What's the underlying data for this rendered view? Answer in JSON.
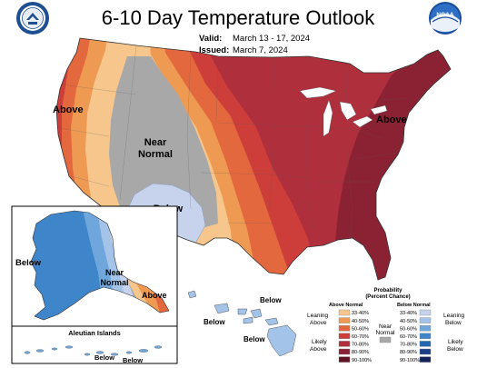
{
  "title": "6-10 Day Temperature Outlook",
  "valid_label": "Valid:",
  "valid_value": "March 13 - 17, 2024",
  "issued_label": "Issued:",
  "issued_value": "March 7, 2024",
  "logos": {
    "left": "Department of Commerce seal",
    "right_text": "NOAA"
  },
  "map_labels": {
    "conus_above_west": "Above",
    "conus_near_normal_1": "Near",
    "conus_near_normal_2": "Normal",
    "conus_below": "Below",
    "conus_above_east": "Above",
    "alaska_below": "Below",
    "alaska_near_1": "Near",
    "alaska_near_2": "Normal",
    "alaska_above": "Above",
    "hawaii_below_1": "Below",
    "hawaii_below_2": "Below",
    "hawaii_below_3": "Below",
    "aleutian_title": "Aleutian Islands",
    "aleutian_below_1": "Below",
    "aleutian_below_2": "Below"
  },
  "legend": {
    "title_1": "Probability",
    "title_2": "(Percent Chance)",
    "above_header": "Above Normal",
    "below_header": "Below Normal",
    "leaning_above_1": "Leaning",
    "leaning_above_2": "Above",
    "likely_above_1": "Likely",
    "likely_above_2": "Above",
    "near_1": "Near",
    "near_2": "Normal",
    "leaning_below_1": "Leaning",
    "leaning_below_2": "Below",
    "likely_below_1": "Likely",
    "likely_below_2": "Below",
    "bins": [
      "33-40%",
      "40-50%",
      "50-60%",
      "60-70%",
      "70-80%",
      "80-90%",
      "90-100%"
    ],
    "above_colors": [
      "#f6c68d",
      "#ef9a52",
      "#e4683d",
      "#cd3d3a",
      "#b02f3c",
      "#8a2233",
      "#5e1422"
    ],
    "below_colors": [
      "#c7d3ec",
      "#a4c3e8",
      "#6fa7dd",
      "#3f85c9",
      "#2166b0",
      "#1c3f86",
      "#13235a"
    ],
    "near_color": "#a8a8a8"
  },
  "colors": {
    "near_normal_gray": "#a8a8a8",
    "above_33_40": "#f6c68d",
    "above_40_50": "#ef9a52",
    "above_50_60": "#e4683d",
    "above_60_70": "#cd3d3a",
    "above_70_80": "#b02f3c",
    "above_80_90": "#8a2233",
    "below_33_40": "#c7d3ec",
    "below_40_50": "#a4c3e8",
    "below_50_60": "#6fa7dd",
    "below_60_70": "#3f85c9"
  }
}
